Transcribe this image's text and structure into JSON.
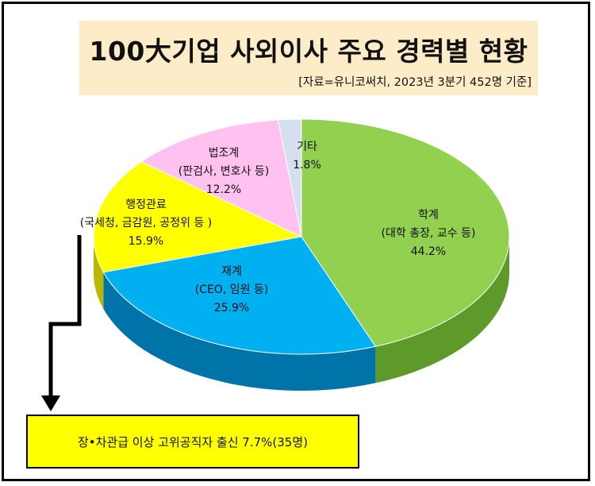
{
  "header": {
    "title": "100大기업 사외이사 주요 경력별 현황",
    "source": "[자료=유니코써치, 2023년 3분기 452명 기준]"
  },
  "note": {
    "text": "장•차관급 이상 고위공직자 출신 7.7%(35명)"
  },
  "chart_data": {
    "type": "pie",
    "title": "100大기업 사외이사 주요 경력별 현황",
    "slices": [
      {
        "name": "학계",
        "detail": "(대학 총장, 교수 등)",
        "value": 44.2,
        "value_label": "44.2%",
        "color": "#92d050",
        "side_color": "#5e9a2a"
      },
      {
        "name": "재계",
        "detail": "(CEO, 임원 등)",
        "value": 25.9,
        "value_label": "25.9%",
        "color": "#00b0f0",
        "side_color": "#0074a8"
      },
      {
        "name": "행정관료",
        "detail": "(국세청, 금감원, 공정위 등 )",
        "value": 15.9,
        "value_label": "15.9%",
        "color": "#ffff00",
        "side_color": "#b8b800"
      },
      {
        "name": "법조계",
        "detail": "(판검사, 변호사 등)",
        "value": 12.2,
        "value_label": "12.2%",
        "color": "#ffc2f0",
        "side_color": "#c88ec0"
      },
      {
        "name": "기타",
        "detail": "",
        "value": 1.8,
        "value_label": "1.8%",
        "color": "#d5dff0",
        "side_color": "#9aa8c0"
      }
    ]
  }
}
